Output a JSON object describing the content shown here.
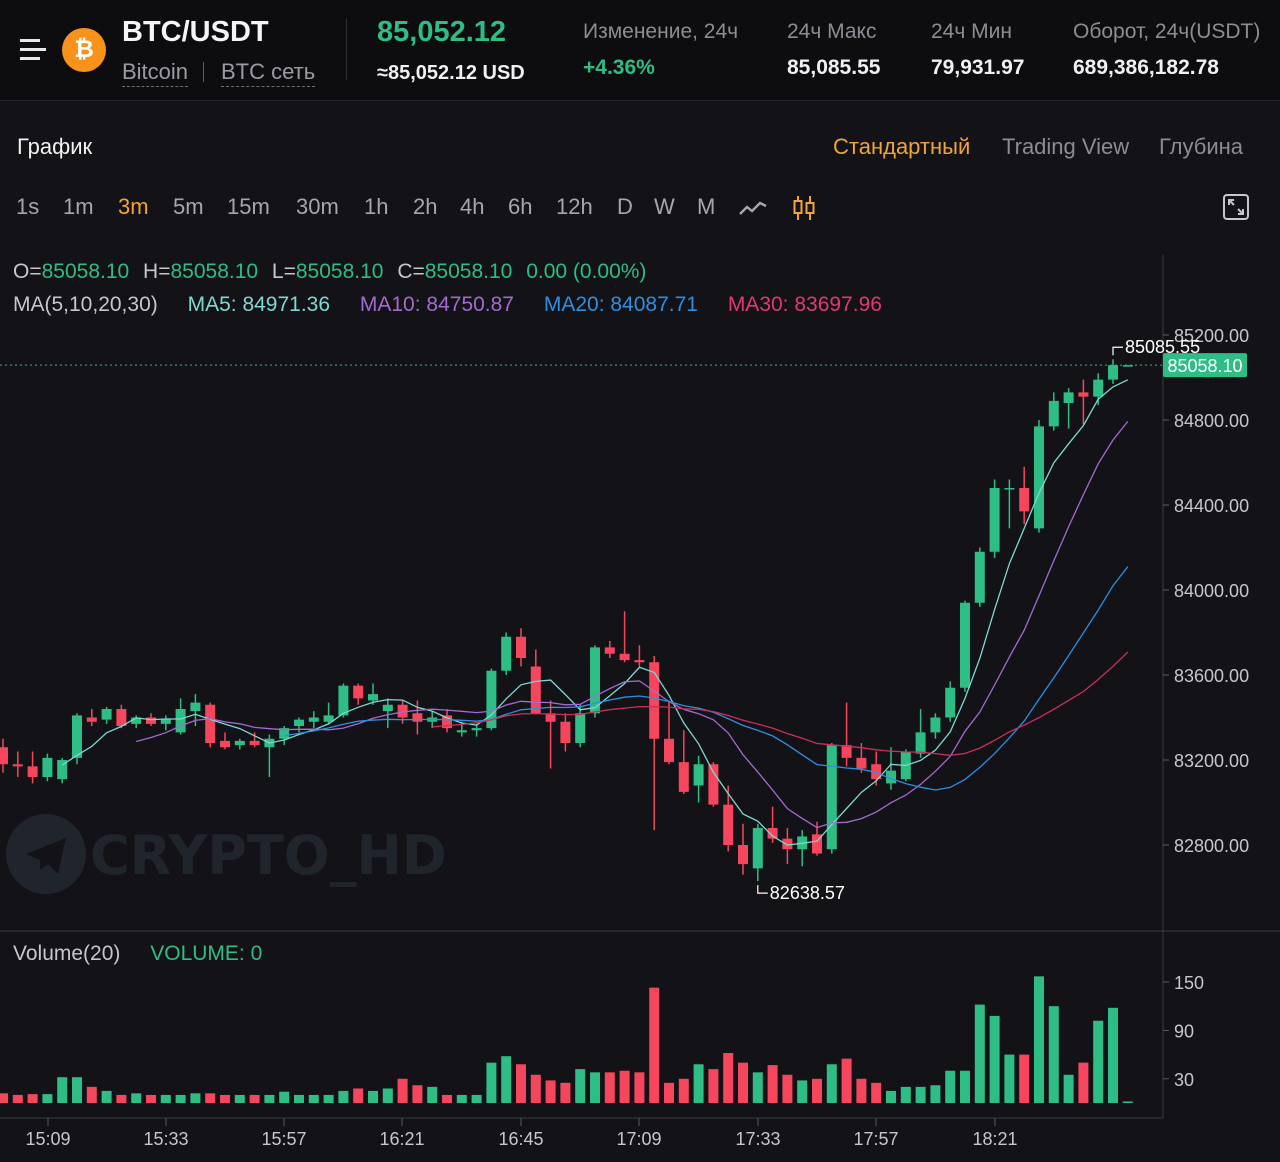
{
  "header": {
    "pair": "BTC/USDT",
    "coin_name": "Bitcoin",
    "separator": "|",
    "network": "BTC сеть",
    "price": "85,052.12",
    "price_usd": "≈85,052.12 USD",
    "change_label": "Изменение, 24ч",
    "change_value": "+4.36%",
    "high_label": "24ч Макс",
    "high_value": "85,085.55",
    "low_label": "24ч Мин",
    "low_value": "79,931.97",
    "turnover_label": "Оборот, 24ч(USDT)",
    "turnover_value": "689,386,182.78",
    "coin_symbol": "₿",
    "colors": {
      "up": "#2ebd85",
      "down": "#f6465d",
      "accent": "#f0a43a",
      "coin": "#f7931a"
    }
  },
  "chart_section": {
    "title": "График",
    "views": [
      {
        "label": "Стандартный",
        "active": true
      },
      {
        "label": "Trading View",
        "active": false
      },
      {
        "label": "Глубина",
        "active": false
      }
    ],
    "intervals": [
      {
        "label": "1s"
      },
      {
        "label": "1m"
      },
      {
        "label": "3m",
        "active": true
      },
      {
        "label": "5m"
      },
      {
        "label": "15m"
      },
      {
        "label": "30m"
      },
      {
        "label": "1h"
      },
      {
        "label": "2h"
      },
      {
        "label": "4h"
      },
      {
        "label": "6h"
      },
      {
        "label": "12h"
      },
      {
        "label": "D"
      },
      {
        "label": "W"
      },
      {
        "label": "M"
      }
    ],
    "icons": {
      "line": "line-chart-icon",
      "candle": "candlestick-icon",
      "fullscreen": "fullscreen-icon",
      "menu": "menu-icon"
    }
  },
  "legend": {
    "o_label": "O=",
    "o": "85058.10",
    "h_label": "H=",
    "h": "85058.10",
    "l_label": "L=",
    "l": "85058.10",
    "c_label": "C=",
    "c": "85058.10",
    "change": "0.00 (0.00%)",
    "ma_label": "MA(5,10,20,30)",
    "ma5": "MA5: 84971.36",
    "ma10": "MA10: 84750.87",
    "ma20": "MA20: 84087.71",
    "ma30": "MA30: 83697.96",
    "volume_label": "Volume(20)",
    "volume_value": "VOLUME: 0"
  },
  "watermark": "CRYPTO_HD",
  "chart_data": {
    "type": "candlestick",
    "interval": "3m",
    "ylim": [
      82400,
      85400
    ],
    "y_ticks": [
      "85200.00",
      "84800.00",
      "84400.00",
      "84000.00",
      "83600.00",
      "83200.00",
      "82800.00"
    ],
    "x_ticks": [
      "15:09",
      "15:33",
      "15:57",
      "16:21",
      "16:45",
      "17:09",
      "17:33",
      "17:57",
      "18:21"
    ],
    "last_price": "85058.10",
    "max_label": "85085.55",
    "min_label": "82638.57",
    "volume_ticks": [
      "150",
      "90",
      "30"
    ],
    "volume_ylim": [
      0,
      170
    ],
    "colors": {
      "up": "#2ebd85",
      "down": "#f6465d",
      "ma5": "#7fd8d2",
      "ma10": "#a36bd1",
      "ma20": "#2f8fe0",
      "ma30": "#c8305a"
    },
    "candles": [
      {
        "o": 83260,
        "h": 83300,
        "l": 83140,
        "c": 83180,
        "v": 12
      },
      {
        "o": 83180,
        "h": 83240,
        "l": 83120,
        "c": 83170,
        "v": 10
      },
      {
        "o": 83170,
        "h": 83240,
        "l": 83090,
        "c": 83120,
        "v": 11
      },
      {
        "o": 83120,
        "h": 83230,
        "l": 83100,
        "c": 83210,
        "v": 11
      },
      {
        "o": 83110,
        "h": 83210,
        "l": 83090,
        "c": 83200,
        "v": 32
      },
      {
        "o": 83210,
        "h": 83420,
        "l": 83180,
        "c": 83410,
        "v": 32
      },
      {
        "o": 83400,
        "h": 83440,
        "l": 83360,
        "c": 83380,
        "v": 20
      },
      {
        "o": 83390,
        "h": 83450,
        "l": 83370,
        "c": 83440,
        "v": 15
      },
      {
        "o": 83440,
        "h": 83460,
        "l": 83350,
        "c": 83360,
        "v": 10
      },
      {
        "o": 83370,
        "h": 83410,
        "l": 83350,
        "c": 83400,
        "v": 12
      },
      {
        "o": 83400,
        "h": 83420,
        "l": 83360,
        "c": 83370,
        "v": 10
      },
      {
        "o": 83370,
        "h": 83410,
        "l": 83340,
        "c": 83395,
        "v": 10
      },
      {
        "o": 83330,
        "h": 83490,
        "l": 83320,
        "c": 83440,
        "v": 10
      },
      {
        "o": 83430,
        "h": 83510,
        "l": 83360,
        "c": 83470,
        "v": 12
      },
      {
        "o": 83460,
        "h": 83470,
        "l": 83260,
        "c": 83280,
        "v": 12
      },
      {
        "o": 83290,
        "h": 83330,
        "l": 83250,
        "c": 83260,
        "v": 10
      },
      {
        "o": 83270,
        "h": 83300,
        "l": 83250,
        "c": 83290,
        "v": 10
      },
      {
        "o": 83290,
        "h": 83330,
        "l": 83260,
        "c": 83270,
        "v": 10
      },
      {
        "o": 83260,
        "h": 83320,
        "l": 83120,
        "c": 83300,
        "v": 10
      },
      {
        "o": 83300,
        "h": 83360,
        "l": 83270,
        "c": 83350,
        "v": 14
      },
      {
        "o": 83360,
        "h": 83400,
        "l": 83330,
        "c": 83390,
        "v": 10
      },
      {
        "o": 83380,
        "h": 83430,
        "l": 83350,
        "c": 83400,
        "v": 10
      },
      {
        "o": 83380,
        "h": 83470,
        "l": 83370,
        "c": 83410,
        "v": 10
      },
      {
        "o": 83410,
        "h": 83560,
        "l": 83400,
        "c": 83550,
        "v": 15
      },
      {
        "o": 83550,
        "h": 83560,
        "l": 83460,
        "c": 83490,
        "v": 18
      },
      {
        "o": 83480,
        "h": 83560,
        "l": 83460,
        "c": 83510,
        "v": 15
      },
      {
        "o": 83430,
        "h": 83490,
        "l": 83350,
        "c": 83460,
        "v": 18
      },
      {
        "o": 83460,
        "h": 83480,
        "l": 83370,
        "c": 83400,
        "v": 30
      },
      {
        "o": 83420,
        "h": 83480,
        "l": 83320,
        "c": 83380,
        "v": 22
      },
      {
        "o": 83380,
        "h": 83430,
        "l": 83350,
        "c": 83400,
        "v": 20
      },
      {
        "o": 83410,
        "h": 83440,
        "l": 83330,
        "c": 83350,
        "v": 10
      },
      {
        "o": 83330,
        "h": 83380,
        "l": 83310,
        "c": 83340,
        "v": 10
      },
      {
        "o": 83340,
        "h": 83370,
        "l": 83310,
        "c": 83350,
        "v": 10
      },
      {
        "o": 83350,
        "h": 83630,
        "l": 83340,
        "c": 83620,
        "v": 50
      },
      {
        "o": 83620,
        "h": 83800,
        "l": 83600,
        "c": 83780,
        "v": 58
      },
      {
        "o": 83780,
        "h": 83820,
        "l": 83640,
        "c": 83680,
        "v": 48
      },
      {
        "o": 83640,
        "h": 83720,
        "l": 83420,
        "c": 83420,
        "v": 35
      },
      {
        "o": 83420,
        "h": 83480,
        "l": 83160,
        "c": 83380,
        "v": 28
      },
      {
        "o": 83380,
        "h": 83420,
        "l": 83240,
        "c": 83280,
        "v": 25
      },
      {
        "o": 83280,
        "h": 83460,
        "l": 83260,
        "c": 83420,
        "v": 42
      },
      {
        "o": 83420,
        "h": 83740,
        "l": 83400,
        "c": 83730,
        "v": 38
      },
      {
        "o": 83730,
        "h": 83760,
        "l": 83680,
        "c": 83700,
        "v": 38
      },
      {
        "o": 83700,
        "h": 83900,
        "l": 83660,
        "c": 83670,
        "v": 40
      },
      {
        "o": 83670,
        "h": 83740,
        "l": 83640,
        "c": 83660,
        "v": 38
      },
      {
        "o": 83660,
        "h": 83690,
        "l": 82870,
        "c": 83300,
        "v": 143
      },
      {
        "o": 83300,
        "h": 83480,
        "l": 83180,
        "c": 83190,
        "v": 25
      },
      {
        "o": 83190,
        "h": 83340,
        "l": 83040,
        "c": 83050,
        "v": 30
      },
      {
        "o": 83080,
        "h": 83220,
        "l": 83000,
        "c": 83180,
        "v": 48
      },
      {
        "o": 83180,
        "h": 83190,
        "l": 82980,
        "c": 82990,
        "v": 42
      },
      {
        "o": 82990,
        "h": 83080,
        "l": 82770,
        "c": 82800,
        "v": 62
      },
      {
        "o": 82800,
        "h": 82900,
        "l": 82660,
        "c": 82710,
        "v": 50
      },
      {
        "o": 82690,
        "h": 82900,
        "l": 82630,
        "c": 82880,
        "v": 38
      },
      {
        "o": 82880,
        "h": 82980,
        "l": 82810,
        "c": 82830,
        "v": 47
      },
      {
        "o": 82830,
        "h": 82880,
        "l": 82710,
        "c": 82780,
        "v": 35
      },
      {
        "o": 82780,
        "h": 82870,
        "l": 82700,
        "c": 82840,
        "v": 28
      },
      {
        "o": 82850,
        "h": 82910,
        "l": 82750,
        "c": 82760,
        "v": 30
      },
      {
        "o": 82780,
        "h": 83280,
        "l": 82760,
        "c": 83270,
        "v": 48
      },
      {
        "o": 83270,
        "h": 83470,
        "l": 83170,
        "c": 83210,
        "v": 55
      },
      {
        "o": 83210,
        "h": 83280,
        "l": 83140,
        "c": 83160,
        "v": 30
      },
      {
        "o": 83180,
        "h": 83240,
        "l": 83080,
        "c": 83110,
        "v": 25
      },
      {
        "o": 83090,
        "h": 83260,
        "l": 83060,
        "c": 83150,
        "v": 15
      },
      {
        "o": 83110,
        "h": 83250,
        "l": 83100,
        "c": 83240,
        "v": 20
      },
      {
        "o": 83230,
        "h": 83440,
        "l": 83210,
        "c": 83330,
        "v": 20
      },
      {
        "o": 83330,
        "h": 83420,
        "l": 83300,
        "c": 83400,
        "v": 22
      },
      {
        "o": 83400,
        "h": 83570,
        "l": 83380,
        "c": 83540,
        "v": 40
      },
      {
        "o": 83540,
        "h": 83950,
        "l": 83520,
        "c": 83940,
        "v": 40
      },
      {
        "o": 83940,
        "h": 84200,
        "l": 83920,
        "c": 84180,
        "v": 122
      },
      {
        "o": 84180,
        "h": 84520,
        "l": 84150,
        "c": 84480,
        "v": 108
      },
      {
        "o": 84480,
        "h": 84520,
        "l": 84290,
        "c": 84480,
        "v": 60
      },
      {
        "o": 84480,
        "h": 84580,
        "l": 84310,
        "c": 84370,
        "v": 60
      },
      {
        "o": 84290,
        "h": 84800,
        "l": 84270,
        "c": 84770,
        "v": 157
      },
      {
        "o": 84770,
        "h": 84930,
        "l": 84750,
        "c": 84890,
        "v": 120
      },
      {
        "o": 84880,
        "h": 84950,
        "l": 84760,
        "c": 84930,
        "v": 35
      },
      {
        "o": 84930,
        "h": 84990,
        "l": 84780,
        "c": 84910,
        "v": 50
      },
      {
        "o": 84910,
        "h": 85020,
        "l": 84870,
        "c": 84990,
        "v": 102
      },
      {
        "o": 84990,
        "h": 85086,
        "l": 84970,
        "c": 85058,
        "v": 118
      },
      {
        "o": 85058,
        "h": 85058,
        "l": 85058,
        "c": 85058,
        "v": 0
      }
    ]
  }
}
